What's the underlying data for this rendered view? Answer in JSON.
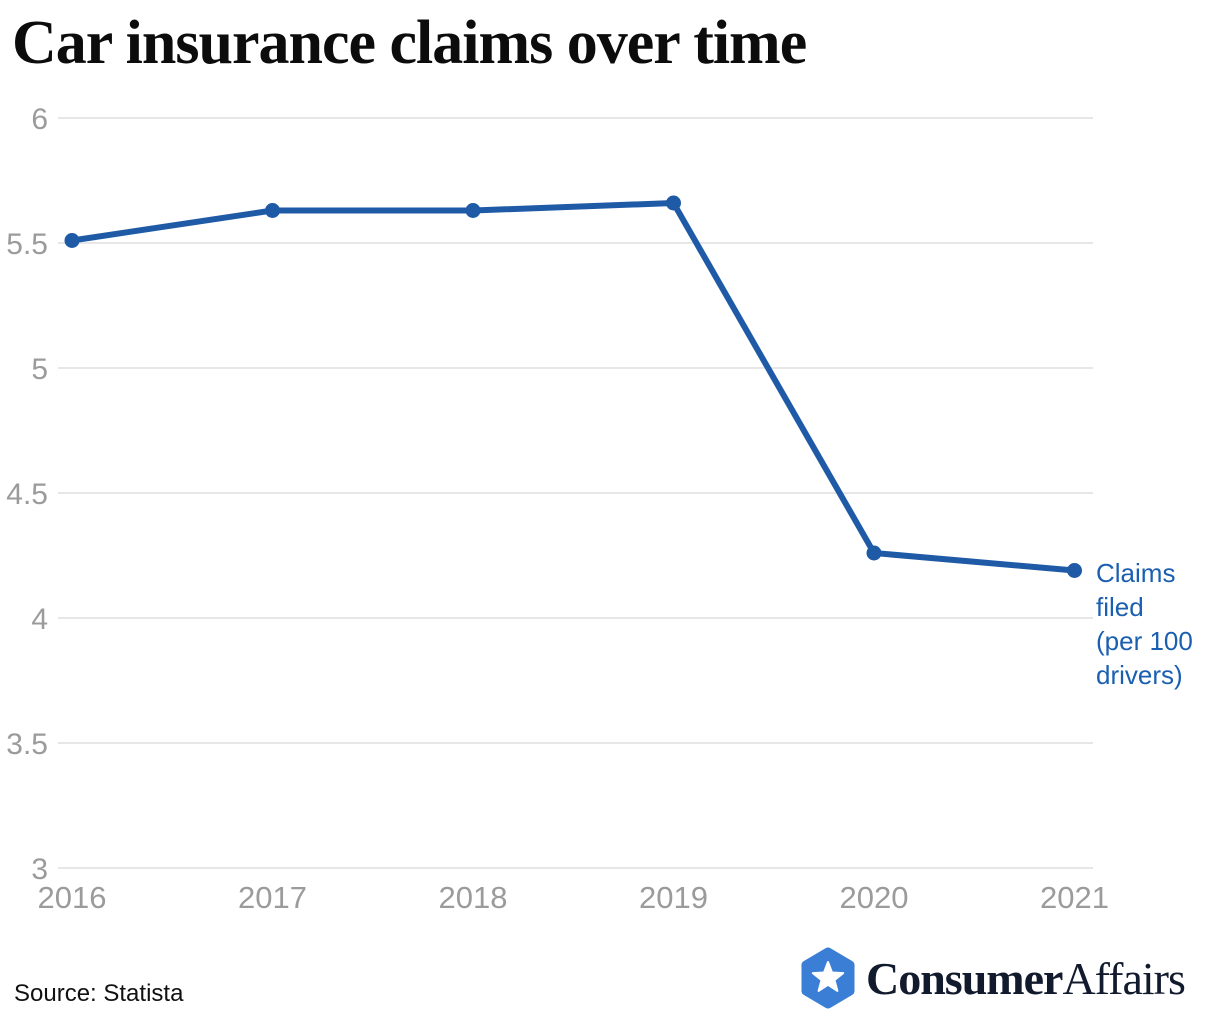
{
  "title": "Car insurance claims over time",
  "chart_data": {
    "type": "line",
    "title": "Car insurance claims over time",
    "x": [
      "2016",
      "2017",
      "2018",
      "2019",
      "2020",
      "2021"
    ],
    "series": [
      {
        "name": "Claims filed (per 100 drivers)",
        "values": [
          5.51,
          5.63,
          5.63,
          5.66,
          4.26,
          4.19
        ]
      }
    ],
    "ylim": [
      3,
      6
    ],
    "yticks": [
      3,
      3.5,
      4,
      4.5,
      5,
      5.5,
      6
    ],
    "grid": "horizontal",
    "legend_position": "right-of-last-point",
    "line_color": "#1f5aa6",
    "marker_color": "#1f5aa6",
    "label_color": "#1b5fb0",
    "axis_text_color": "#9b9b9b",
    "grid_color": "#e7e7e7"
  },
  "footer": {
    "source": "Source: Statista",
    "logo": {
      "icon": "star-hexagon",
      "brand_bold": "Consumer",
      "brand_regular": "Affairs",
      "hex_color": "#3a7fd5",
      "star_color": "#ffffff",
      "text_color": "#121b2d"
    }
  }
}
